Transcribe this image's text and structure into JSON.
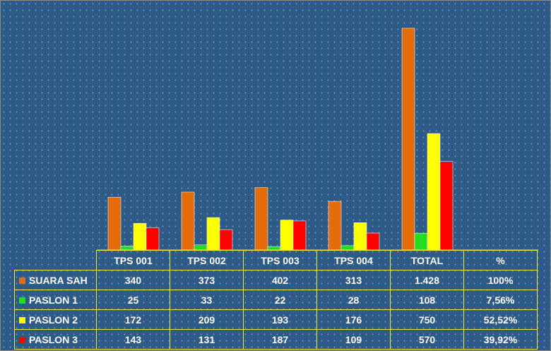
{
  "chart_data": {
    "type": "bar",
    "categories": [
      "TPS 001",
      "TPS 002",
      "TPS 003",
      "TPS 004",
      "TOTAL"
    ],
    "extra_column_header": "%",
    "series": [
      {
        "name": "SUARA SAH",
        "color": "#e46c0a",
        "values": [
          340,
          373,
          402,
          313,
          1428
        ],
        "value_labels": [
          "340",
          "373",
          "402",
          "313",
          "1.428"
        ],
        "percent": "100%"
      },
      {
        "name": "PASLON 1",
        "color": "#22dd22",
        "values": [
          25,
          33,
          22,
          28,
          108
        ],
        "value_labels": [
          "25",
          "33",
          "22",
          "28",
          "108"
        ],
        "percent": "7,56%"
      },
      {
        "name": "PASLON 2",
        "color": "#ffff00",
        "values": [
          172,
          209,
          193,
          176,
          750
        ],
        "value_labels": [
          "172",
          "209",
          "193",
          "176",
          "750"
        ],
        "percent": "52,52%"
      },
      {
        "name": "PASLON 3",
        "color": "#ff0000",
        "values": [
          143,
          131,
          187,
          109,
          570
        ],
        "value_labels": [
          "143",
          "131",
          "187",
          "109",
          "570"
        ],
        "percent": "39,92%"
      }
    ],
    "ylim": [
      0,
      1428
    ],
    "legend_placement": "data-table",
    "grid": false
  }
}
